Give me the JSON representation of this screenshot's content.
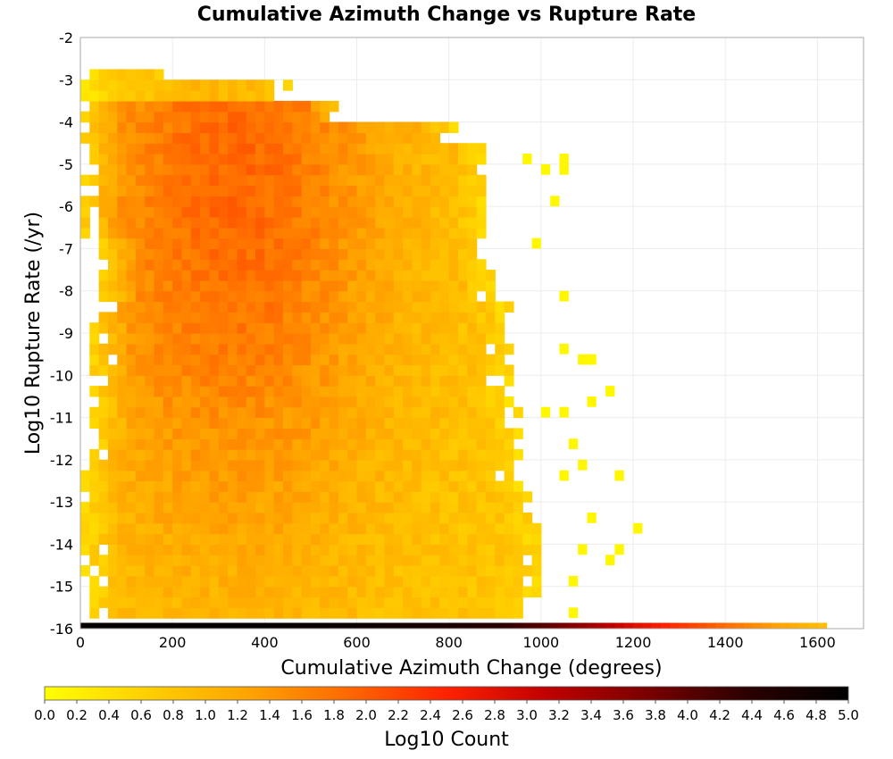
{
  "chart_data": {
    "type": "heatmap",
    "title": "Cumulative Azimuth Change vs Rupture Rate",
    "xlabel": "Cumulative Azimuth Change (degrees)",
    "ylabel": "Log10 Rupture Rate (/yr)",
    "xlim": [
      0,
      1700
    ],
    "ylim": [
      -16,
      -2
    ],
    "x_ticks": [
      "0",
      "200",
      "400",
      "600",
      "800",
      "1000",
      "1200",
      "1400",
      "1600"
    ],
    "y_ticks": [
      "-2",
      "-3",
      "-4",
      "-5",
      "-6",
      "-7",
      "-8",
      "-9",
      "-10",
      "-11",
      "-12",
      "-13",
      "-14",
      "-15",
      "-16"
    ],
    "grid": true,
    "bin_width_degrees": 20,
    "bin_height_log10": 0.25,
    "colorbar": {
      "label": "Log10 Count",
      "range": [
        0,
        5
      ],
      "ticks": [
        "0.0",
        "0.2",
        "0.4",
        "0.6",
        "0.8",
        "1.0",
        "1.2",
        "1.4",
        "1.6",
        "1.8",
        "2.0",
        "2.2",
        "2.4",
        "2.6",
        "2.8",
        "3.0",
        "3.2",
        "3.4",
        "3.6",
        "3.8",
        "4.0",
        "4.2",
        "4.4",
        "4.6",
        "4.8",
        "5.0"
      ],
      "colors": [
        "#ffff00",
        "#ffd000",
        "#ffa500",
        "#ff6a00",
        "#ff2200",
        "#c00000",
        "#7a0000",
        "#2b0000",
        "#000000"
      ]
    },
    "density_summary": {
      "x_extent_max": 1620,
      "main_mass_x_range": [
        20,
        900
      ],
      "main_mass_y_range": [
        -16,
        -3
      ],
      "peak_log10_count_near": {
        "x": 340,
        "y": -5.5,
        "value": 1.9
      },
      "typical_interior_log10_count": 1.2,
      "edge_log10_count": 0.2
    },
    "bottom_row": {
      "y": -16,
      "values": [
        {
          "x": 0,
          "v": 4.9
        },
        {
          "x": 200,
          "v": 4.9
        },
        {
          "x": 400,
          "v": 4.9
        },
        {
          "x": 600,
          "v": 4.8
        },
        {
          "x": 800,
          "v": 4.6
        },
        {
          "x": 900,
          "v": 4.4
        },
        {
          "x": 1000,
          "v": 4.0
        },
        {
          "x": 1100,
          "v": 3.4
        },
        {
          "x": 1200,
          "v": 2.8
        },
        {
          "x": 1300,
          "v": 2.3
        },
        {
          "x": 1400,
          "v": 1.8
        },
        {
          "x": 1500,
          "v": 1.3
        },
        {
          "x": 1600,
          "v": 0.9
        }
      ]
    },
    "sparse_cells": [
      {
        "x": 1000,
        "y": -5.25,
        "v": 0.1
      },
      {
        "x": 1040,
        "y": -5.25,
        "v": 0.1
      },
      {
        "x": 1040,
        "y": -5.0,
        "v": 0.1
      },
      {
        "x": 960,
        "y": -5.0,
        "v": 0.1
      },
      {
        "x": 1020,
        "y": -6.0,
        "v": 0.1
      },
      {
        "x": 980,
        "y": -7.0,
        "v": 0.1
      },
      {
        "x": 1040,
        "y": -8.25,
        "v": 0.1
      },
      {
        "x": 1080,
        "y": -9.75,
        "v": 0.1
      },
      {
        "x": 1100,
        "y": -9.75,
        "v": 0.1
      },
      {
        "x": 1040,
        "y": -9.5,
        "v": 0.1
      },
      {
        "x": 1140,
        "y": -10.5,
        "v": 0.1
      },
      {
        "x": 1100,
        "y": -10.75,
        "v": 0.1
      },
      {
        "x": 1000,
        "y": -11.0,
        "v": 0.1
      },
      {
        "x": 1040,
        "y": -11.0,
        "v": 0.1
      },
      {
        "x": 1060,
        "y": -11.75,
        "v": 0.1
      },
      {
        "x": 1080,
        "y": -12.25,
        "v": 0.1
      },
      {
        "x": 1040,
        "y": -12.5,
        "v": 0.1
      },
      {
        "x": 1160,
        "y": -12.5,
        "v": 0.1
      },
      {
        "x": 1100,
        "y": -13.5,
        "v": 0.1
      },
      {
        "x": 1200,
        "y": -13.75,
        "v": 0.1
      },
      {
        "x": 1080,
        "y": -14.25,
        "v": 0.1
      },
      {
        "x": 1140,
        "y": -14.5,
        "v": 0.1
      },
      {
        "x": 1160,
        "y": -14.25,
        "v": 0.1
      },
      {
        "x": 1060,
        "y": -15.0,
        "v": 0.1
      },
      {
        "x": 1060,
        "y": -15.75,
        "v": 0.1
      }
    ]
  }
}
